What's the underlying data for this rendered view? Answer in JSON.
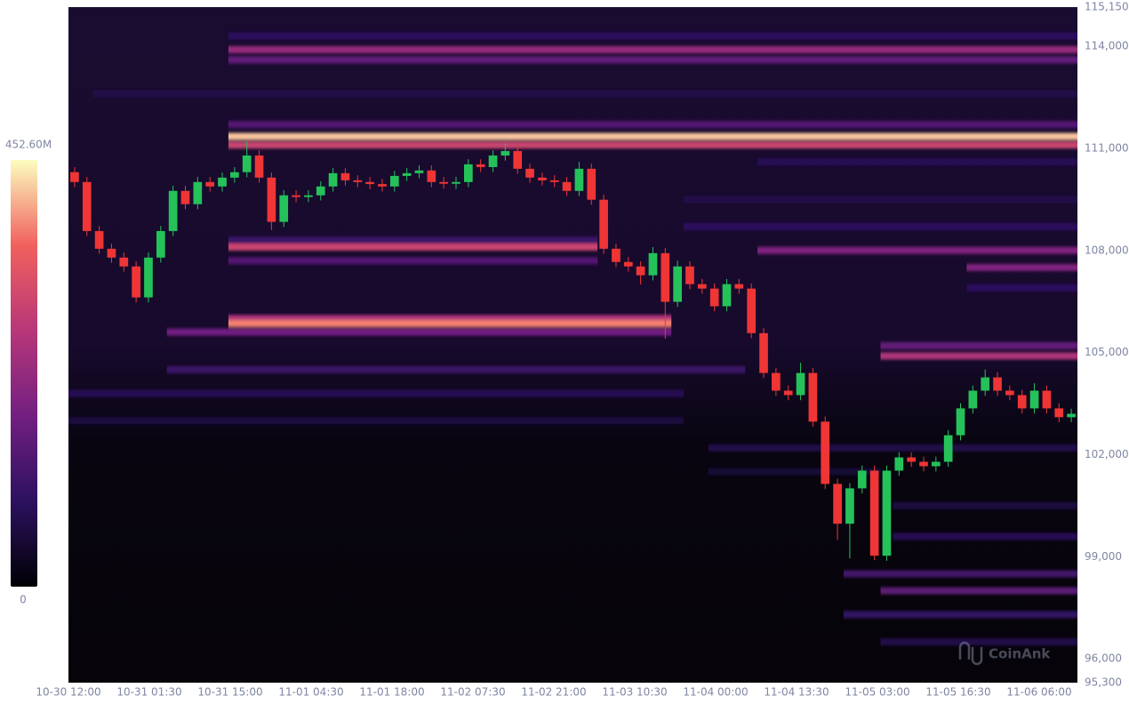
{
  "chart_data": {
    "type": "candlestick_heatmap",
    "watermark": "CoinAnk",
    "up_color": "#25c25a",
    "down_color": "#ef3535",
    "ylim": [
      95300,
      115150
    ],
    "yticks": [
      {
        "value": 95300,
        "label": "95,300"
      },
      {
        "value": 96000,
        "label": "96,000"
      },
      {
        "value": 99000,
        "label": "99,000"
      },
      {
        "value": 102000,
        "label": "102,000"
      },
      {
        "value": 105000,
        "label": "105,000"
      },
      {
        "value": 108000,
        "label": "108,000"
      },
      {
        "value": 111000,
        "label": "111,000"
      },
      {
        "value": 114000,
        "label": "114,000"
      },
      {
        "value": 115150,
        "label": "115,150"
      }
    ],
    "xticks": [
      "10-30 12:00",
      "10-31 01:30",
      "10-31 15:00",
      "11-01 04:30",
      "11-01 18:00",
      "11-02 07:30",
      "11-02 21:00",
      "11-03 10:30",
      "11-04 00:00",
      "11-04 13:30",
      "11-05 03:00",
      "11-05 16:30",
      "11-06 06:00"
    ],
    "colorbar": {
      "max": {
        "value": 452.6,
        "label": "452.60M"
      },
      "min": 0
    },
    "open": [
      110300,
      110010,
      108570,
      108050,
      107790,
      107530,
      106620,
      107790,
      108570,
      109750,
      109360,
      110010,
      109880,
      110140,
      110300,
      110790,
      110140,
      108840,
      109620,
      109570,
      109620,
      109880,
      110270,
      110060,
      110010,
      109950,
      109880,
      110190,
      110270,
      110350,
      110010,
      109960,
      110010,
      110530,
      110450,
      110790,
      110920,
      110400,
      110140,
      110060,
      110010,
      109750,
      110400,
      109490,
      108050,
      107660,
      107530,
      107270,
      107920,
      106490,
      107530,
      107010,
      106880,
      106360,
      107010,
      106880,
      105570,
      104400,
      103880,
      103750,
      104400,
      102970,
      101140,
      99970,
      101010,
      101530,
      99030,
      101530,
      101920,
      101790,
      101660,
      101790,
      102570,
      103360,
      103880,
      104270,
      103880,
      103750,
      103360,
      103880,
      103360,
      103100
    ],
    "close": [
      110010,
      108570,
      108050,
      107790,
      107530,
      106620,
      107790,
      108570,
      109750,
      109360,
      110010,
      109880,
      110140,
      110300,
      110790,
      110140,
      108840,
      109620,
      109570,
      109620,
      109880,
      110270,
      110060,
      110010,
      109950,
      109880,
      110190,
      110270,
      110350,
      110010,
      109960,
      110010,
      110530,
      110450,
      110790,
      110920,
      110400,
      110140,
      110060,
      110010,
      109750,
      110400,
      109490,
      108050,
      107660,
      107530,
      107270,
      107920,
      106490,
      107530,
      107010,
      106880,
      106360,
      107010,
      106880,
      105570,
      104400,
      103880,
      103750,
      104400,
      102970,
      101140,
      99970,
      101010,
      101530,
      99030,
      101530,
      101920,
      101790,
      101660,
      101790,
      102570,
      103360,
      103880,
      104270,
      103880,
      103750,
      103360,
      103880,
      103360,
      103100,
      103200
    ],
    "high": [
      110450,
      110160,
      108720,
      108200,
      107940,
      107680,
      107940,
      108720,
      109900,
      109900,
      110160,
      110160,
      110290,
      110450,
      111200,
      110940,
      110290,
      109770,
      109770,
      109770,
      110030,
      110420,
      110420,
      110210,
      110160,
      110100,
      110340,
      110420,
      110500,
      110500,
      110160,
      110160,
      110680,
      110680,
      110940,
      111150,
      111070,
      110550,
      110290,
      110210,
      110160,
      110600,
      110550,
      109640,
      108200,
      107810,
      107680,
      108100,
      108070,
      107700,
      107680,
      107160,
      107030,
      107160,
      107160,
      107030,
      105720,
      104550,
      104030,
      104700,
      104550,
      103120,
      101290,
      101160,
      101680,
      101680,
      101680,
      102070,
      102070,
      101940,
      101940,
      102720,
      103510,
      104030,
      104500,
      104420,
      104030,
      103900,
      104100,
      104030,
      103510,
      103350
    ],
    "low": [
      109860,
      108420,
      107900,
      107640,
      107380,
      106470,
      106470,
      107640,
      108420,
      109210,
      109210,
      109730,
      109730,
      109990,
      110150,
      109990,
      108600,
      108690,
      109420,
      109420,
      109470,
      109730,
      109910,
      109860,
      109800,
      109730,
      109730,
      110040,
      110120,
      109860,
      109810,
      109810,
      109860,
      110300,
      110300,
      110640,
      110250,
      109990,
      109910,
      109860,
      109600,
      109600,
      109340,
      107900,
      107510,
      107380,
      107000,
      107120,
      105400,
      106340,
      106860,
      106730,
      106210,
      106210,
      106730,
      105420,
      104250,
      103730,
      103600,
      103600,
      102820,
      100990,
      99500,
      98950,
      100860,
      98900,
      98880,
      101380,
      101640,
      101510,
      101510,
      101640,
      102420,
      103210,
      103730,
      103730,
      103600,
      103210,
      103210,
      103210,
      102950,
      102950
    ],
    "bands": {
      "price": [
        114300,
        113900,
        113600,
        112600,
        111700,
        111350,
        111100,
        110600,
        109500,
        108700,
        108300,
        108100,
        108000,
        107700,
        107500,
        106900,
        106000,
        105850,
        105600,
        105200,
        104900,
        104500,
        103800,
        103000,
        102200,
        101500,
        100500,
        99600,
        98500,
        98000,
        97300,
        96500
      ],
      "value": [
        90,
        230,
        160,
        70,
        140,
        420,
        300,
        80,
        70,
        90,
        110,
        300,
        200,
        140,
        200,
        90,
        260,
        380,
        180,
        160,
        260,
        110,
        80,
        60,
        70,
        50,
        60,
        80,
        120,
        150,
        100,
        70
      ],
      "start": [
        13,
        13,
        13,
        2,
        13,
        13,
        13,
        56,
        50,
        50,
        13,
        13,
        56,
        13,
        73,
        73,
        13,
        13,
        8,
        66,
        66,
        8,
        0,
        0,
        52,
        52,
        67,
        67,
        63,
        66,
        63,
        66
      ],
      "end": [
        82,
        82,
        82,
        82,
        82,
        82,
        82,
        82,
        82,
        82,
        43,
        43,
        82,
        43,
        82,
        82,
        49,
        49,
        49,
        82,
        82,
        55,
        50,
        50,
        82,
        66,
        82,
        82,
        82,
        82,
        82,
        82
      ]
    }
  }
}
